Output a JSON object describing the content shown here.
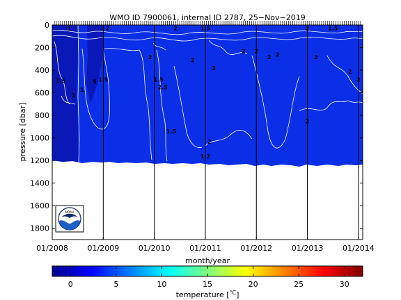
{
  "title": "WMO ID 7900061, internal ID 2787, 25−Nov−2019",
  "colors": {
    "section_fill": "#0a2fe6",
    "deep_fill": "#0a18b8",
    "contour": "#ffffff",
    "dates": "#000000",
    "noaa_blue": "#1e5fc8",
    "noaa_navy": "#0b2a6b"
  },
  "chart_data": [
    {
      "type": "heatmap",
      "title": "WMO ID 7900061, internal ID 2787, 25−Nov−2019",
      "xlabel": "month/year",
      "ylabel": "pressure [dbar]",
      "x_ticks": [
        "01/2008",
        "01/2009",
        "01/2010",
        "01/2011",
        "01/2012",
        "01/2013",
        "01/2014"
      ],
      "xlim": [
        "2008-01",
        "2014-02"
      ],
      "y_ticks": [
        0,
        200,
        400,
        600,
        800,
        1000,
        1200,
        1400,
        1600,
        1800
      ],
      "ylim": [
        1900,
        0
      ],
      "y_reversed": true,
      "max_profile_depth": 1230,
      "profile_top_edge_ticks": true,
      "contour_labels": [
        {
          "text": "1",
          "x": "2008-05",
          "y": 50
        },
        {
          "text": "2",
          "x": "2009-02",
          "y": 45
        },
        {
          "text": "2",
          "x": "2010-06",
          "y": 45
        },
        {
          "text": "1.5",
          "x": "2011-01",
          "y": 45
        },
        {
          "text": "2",
          "x": "2013-01",
          "y": 50
        },
        {
          "text": "1.5",
          "x": "2013-07",
          "y": 45
        },
        {
          "text": "2",
          "x": "2009-12",
          "y": 300
        },
        {
          "text": "2",
          "x": "2010-10",
          "y": 330
        },
        {
          "text": "2",
          "x": "2011-03",
          "y": 400
        },
        {
          "text": "2",
          "x": "2011-10",
          "y": 250
        },
        {
          "text": "2",
          "x": "2012-01",
          "y": 250
        },
        {
          "text": "2",
          "x": "2012-04",
          "y": 300
        },
        {
          "text": "2",
          "x": "2012-06",
          "y": 280
        },
        {
          "text": "2",
          "x": "2013-03",
          "y": 300
        },
        {
          "text": "2",
          "x": "2013-11",
          "y": 430
        },
        {
          "text": "2",
          "x": "2014-01",
          "y": 500
        },
        {
          "text": "1.5",
          "x": "2008-03",
          "y": 510
        },
        {
          "text": "5",
          "x": "2008-11",
          "y": 520
        },
        {
          "text": "1.5",
          "x": "2009-01",
          "y": 500
        },
        {
          "text": "1",
          "x": "2008-08",
          "y": 590
        },
        {
          "text": "1",
          "x": "2008-06",
          "y": 640
        },
        {
          "text": "1.5",
          "x": "2010-02",
          "y": 500
        },
        {
          "text": "2.5",
          "x": "2010-03",
          "y": 570
        },
        {
          "text": "1.5",
          "x": "2010-05",
          "y": 960
        },
        {
          "text": "2",
          "x": "2011-02",
          "y": 1050
        },
        {
          "text": "1.2",
          "x": "2011-01",
          "y": 1180
        },
        {
          "text": "2",
          "x": "2013-01",
          "y": 870
        }
      ]
    },
    {
      "type": "colorbar",
      "xlabel": "temperature [°C]",
      "xlabel_main": "temperature [",
      "xlabel_unit": "°C",
      "xlabel_end": "]",
      "ticks": [
        0,
        5,
        10,
        15,
        20,
        25,
        30
      ],
      "range": [
        -2,
        32
      ]
    }
  ],
  "logo": {
    "text": "NOAA"
  }
}
